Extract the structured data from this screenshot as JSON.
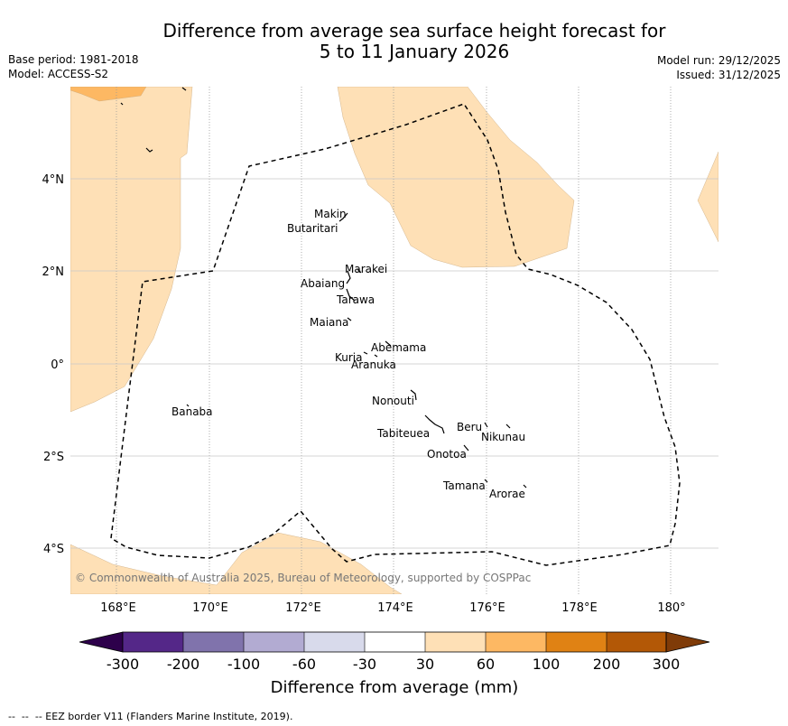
{
  "header": {
    "title_line1": "Difference from average sea surface height forecast for",
    "title_line2": "5 to 11 January 2026",
    "base_period": "Base period: 1981-2018",
    "model": "Model: ACCESS-S2",
    "model_run": "Model run: 29/12/2025",
    "issued": "Issued: 31/12/2025"
  },
  "map": {
    "lon_labels": [
      "168°E",
      "170°E",
      "172°E",
      "174°E",
      "176°E",
      "178°E",
      "180°"
    ],
    "lat_labels": [
      "4°N",
      "2°N",
      "0°",
      "2°S",
      "4°S"
    ],
    "places": [
      "Makin",
      "Butaritari",
      "Marakei",
      "Abaiang",
      "Tarawa",
      "Maiana",
      "Abemama",
      "Kuria",
      "Aranuka",
      "Nonouti",
      "Tabiteuea",
      "Beru",
      "Nikunau",
      "Onotoa",
      "Tamana",
      "Arorae",
      "Banaba"
    ],
    "copyright": "© Commonwealth of Australia 2025, Bureau of Meteorology, supported by COSPPac"
  },
  "colorbar": {
    "ticks": [
      "-300",
      "-200",
      "-100",
      "-60",
      "-30",
      "30",
      "60",
      "100",
      "200",
      "300"
    ],
    "colors": [
      "#542788",
      "#8073ac",
      "#b2abd2",
      "#d8daeb",
      "#ffffff",
      "#fee0b6",
      "#fdb863",
      "#e08214",
      "#b35806"
    ],
    "under_color": "#2d004b",
    "over_color": "#7f3b08",
    "label": "Difference from average (mm)"
  },
  "footer": {
    "eez_note": "--  --  -- EEZ border V11 (Flanders Marine Institute, 2019)."
  }
}
